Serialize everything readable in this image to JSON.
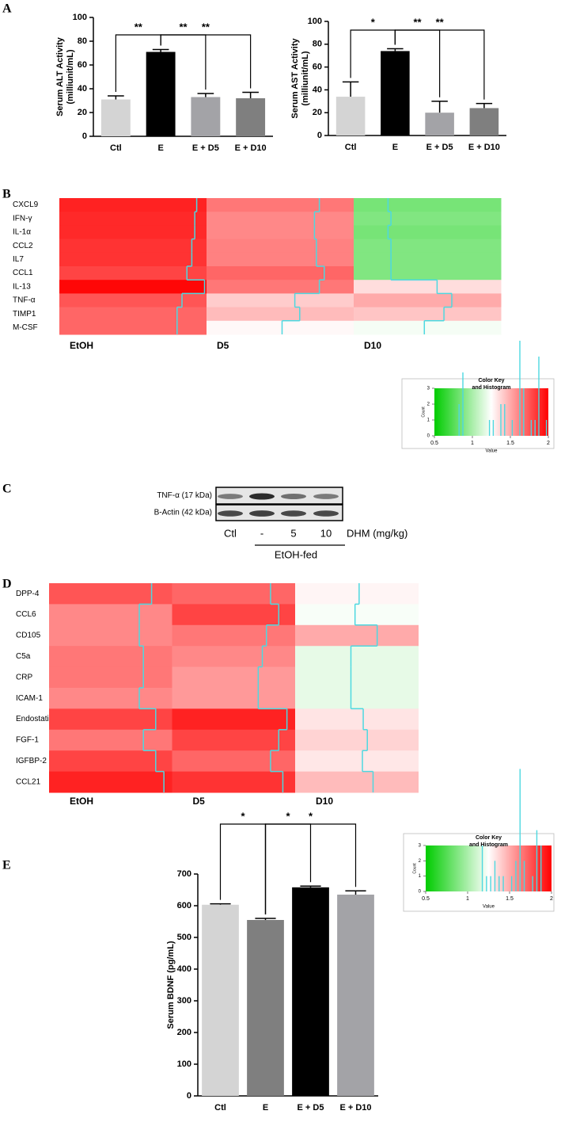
{
  "chart_data": [
    {
      "type": "bar",
      "panel": "A",
      "ylabel": [
        "Serum ALT Activity",
        "(milliunit/mL)"
      ],
      "categories": [
        "Ctl",
        "E",
        "E + D5",
        "E + D10"
      ],
      "values": [
        31,
        71,
        33,
        32
      ],
      "errors": [
        3,
        2,
        3,
        5
      ],
      "colors": [
        "#d4d4d4",
        "#000000",
        "#a3a3a7",
        "#7f7f7f"
      ],
      "ylim": [
        0,
        100
      ],
      "yticks": [
        0,
        20,
        40,
        60,
        80,
        100
      ],
      "annotations": [
        {
          "text": "**",
          "from": 0,
          "to": 1
        },
        {
          "text": "**",
          "from": 1,
          "to": 2
        },
        {
          "text": "**",
          "from": 1,
          "to": 3
        }
      ]
    },
    {
      "type": "bar",
      "ylabel": [
        "Serum AST Activity",
        "(milliunit/mL)"
      ],
      "categories": [
        "Ctl",
        "E",
        "E + D5",
        "E + D10"
      ],
      "values": [
        34,
        74,
        20,
        24
      ],
      "errors": [
        13,
        2,
        10,
        4
      ],
      "colors": [
        "#d4d4d4",
        "#000000",
        "#a3a3a7",
        "#7f7f7f"
      ],
      "ylim": [
        0,
        100
      ],
      "yticks": [
        0,
        20,
        40,
        60,
        80,
        100
      ],
      "annotations": [
        {
          "text": "*",
          "from": 0,
          "to": 1
        },
        {
          "text": "**",
          "from": 1,
          "to": 2
        },
        {
          "text": "**",
          "from": 1,
          "to": 3
        }
      ]
    },
    {
      "type": "heatmap",
      "panel": "B",
      "rows": [
        "CXCL9",
        "IFN-γ",
        "IL-1α",
        "CCL2",
        "IL7",
        "CCL1",
        "IL-13",
        "TNF-α",
        "TIMP1",
        "M-CSF"
      ],
      "series": [
        {
          "name": "EtOH",
          "values": [
            1.9,
            1.88,
            1.88,
            1.85,
            1.85,
            1.8,
            1.98,
            1.75,
            1.7,
            1.7
          ]
        },
        {
          "name": "D5",
          "values": [
            1.65,
            1.6,
            1.6,
            1.62,
            1.62,
            1.7,
            1.65,
            1.4,
            1.45,
            1.27
          ]
        },
        {
          "name": "D10",
          "values": [
            0.85,
            0.88,
            0.85,
            0.88,
            0.88,
            0.88,
            1.35,
            1.5,
            1.42,
            1.22
          ]
        }
      ],
      "color_key": {
        "title": [
          "Color Key",
          "and Histogram"
        ],
        "xlabel": "Value",
        "ylabel": "Count",
        "xlim": [
          0.5,
          2
        ],
        "xticks": [
          0.5,
          1,
          1.5,
          2
        ],
        "ylim": [
          0,
          3
        ],
        "yticks": [
          0,
          1,
          2,
          3
        ],
        "colors": [
          "#00cc00",
          "#ffffff",
          "#ff0000"
        ],
        "trace_color": "#4dd8e0"
      }
    },
    {
      "type": "blot",
      "panel": "C",
      "rows": [
        "TNF-α (17 kDa)",
        "B-Actin (42 kDa)"
      ],
      "lanes": [
        "Ctl",
        "-",
        "5",
        "10"
      ],
      "lane_unit": "DHM (mg/kg)",
      "group": "EtOH-fed"
    },
    {
      "type": "heatmap",
      "panel": "D",
      "rows": [
        "DPP-4",
        "CCL6",
        "CD105",
        "C5a",
        "CRP",
        "ICAM-1",
        "Endostatin",
        "FGF-1",
        "IGFBP-2",
        "CCL21"
      ],
      "series": [
        {
          "name": "EtOH",
          "values": [
            1.75,
            1.6,
            1.6,
            1.65,
            1.65,
            1.6,
            1.8,
            1.65,
            1.8,
            1.9
          ]
        },
        {
          "name": "D5",
          "values": [
            1.7,
            1.8,
            1.65,
            1.6,
            1.55,
            1.55,
            1.9,
            1.8,
            1.7,
            1.85
          ]
        },
        {
          "name": "D10",
          "values": [
            1.28,
            1.23,
            1.5,
            1.18,
            1.18,
            1.18,
            1.33,
            1.38,
            1.32,
            1.45
          ]
        }
      ],
      "color_key": {
        "title": [
          "Color Key",
          "and Histogram"
        ],
        "xlabel": "Value",
        "ylabel": "Count",
        "xlim": [
          0.5,
          2
        ],
        "xticks": [
          0.5,
          1,
          1.5,
          2
        ],
        "ylim": [
          0,
          3
        ],
        "yticks": [
          0,
          1,
          2,
          3
        ],
        "colors": [
          "#00cc00",
          "#ffffff",
          "#ff0000"
        ],
        "trace_color": "#4dd8e0"
      }
    },
    {
      "type": "bar",
      "panel": "E",
      "ylabel": "Serum BDNF (pg/mL)",
      "categories": [
        "Ctl",
        "E",
        "E + D5",
        "E + D10"
      ],
      "values": [
        603,
        555,
        658,
        635
      ],
      "errors": [
        3,
        5,
        4,
        12
      ],
      "colors": [
        "#d4d4d4",
        "#7f7f7f",
        "#000000",
        "#a3a3a7"
      ],
      "ylim": [
        0,
        700
      ],
      "yticks": [
        0,
        100,
        200,
        300,
        400,
        500,
        600,
        700
      ],
      "annotations": [
        {
          "text": "*",
          "from": 0,
          "to": 1
        },
        {
          "text": "*",
          "from": 1,
          "to": 2
        },
        {
          "text": "*",
          "from": 1,
          "to": 3
        }
      ]
    }
  ]
}
